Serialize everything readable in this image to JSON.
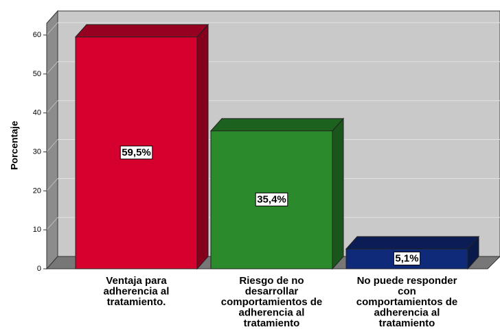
{
  "chart_data": {
    "type": "bar3d",
    "y_label": "Porcentaje",
    "categories": [
      "Ventaja para\nadherencia al\ntratamiento.",
      "Riesgo de no\ndesarrollar\ncomportamientos de\nadherencia al\ntratamiento",
      "No puede responder\ncon\ncomportamientos de\nadherencia al\ntratamiento"
    ],
    "values": [
      59.5,
      35.4,
      5.1
    ],
    "value_labels": [
      "59,5%",
      "35,4%",
      "5,1%"
    ],
    "colors": [
      "#d6002f",
      "#2a8a2c",
      "#0f2a78"
    ],
    "ylim": [
      0,
      63
    ],
    "yticks": [
      0,
      10,
      20,
      30,
      40,
      50,
      60
    ],
    "grid": true
  }
}
